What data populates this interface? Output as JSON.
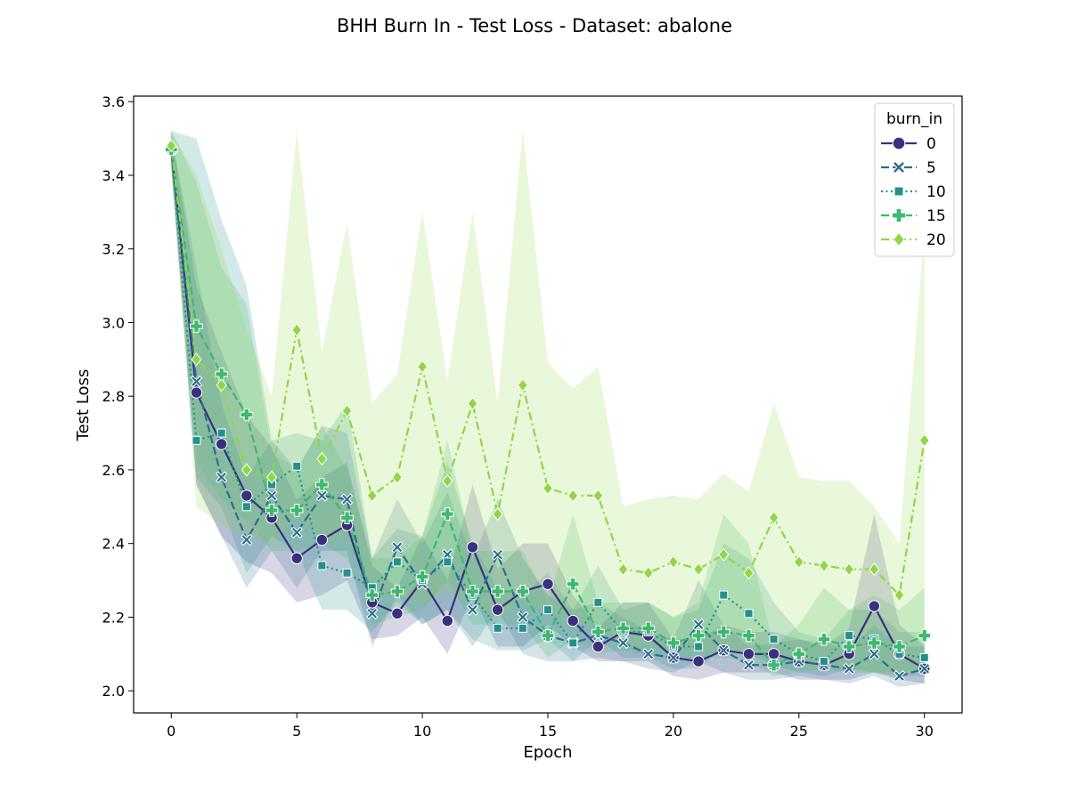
{
  "chart_data": {
    "type": "line",
    "title": "BHH Burn In - Test Loss - Dataset: abalone",
    "xlabel": "Epoch",
    "ylabel": "Test Loss",
    "xlim": [
      -1.5,
      31.5
    ],
    "ylim": [
      1.94,
      3.615
    ],
    "x_ticks": [
      "0",
      "5",
      "10",
      "15",
      "20",
      "25",
      "30"
    ],
    "y_ticks": [
      "2.0",
      "2.2",
      "2.4",
      "2.6",
      "2.8",
      "3.0",
      "3.2",
      "3.4",
      "3.6"
    ],
    "x_tick_values": [
      0,
      5,
      10,
      15,
      20,
      25,
      30
    ],
    "y_tick_values": [
      2.0,
      2.2,
      2.4,
      2.6,
      2.8,
      3.0,
      3.2,
      3.4,
      3.6
    ],
    "grid": false,
    "legend": {
      "title": "burn_in",
      "placement": "top-right"
    },
    "x": [
      0,
      1,
      2,
      3,
      4,
      5,
      6,
      7,
      8,
      9,
      10,
      11,
      12,
      13,
      14,
      15,
      16,
      17,
      18,
      19,
      20,
      21,
      22,
      23,
      24,
      25,
      26,
      27,
      28,
      29,
      30
    ],
    "series": [
      {
        "name": "0",
        "color": "#3b2f80",
        "dash": "solid",
        "marker": "circle",
        "values": [
          3.47,
          2.81,
          2.67,
          2.53,
          2.47,
          2.36,
          2.41,
          2.45,
          2.24,
          2.21,
          2.3,
          2.19,
          2.39,
          2.22,
          2.27,
          2.29,
          2.19,
          2.12,
          2.16,
          2.15,
          2.09,
          2.08,
          2.11,
          2.1,
          2.1,
          2.08,
          2.07,
          2.1,
          2.23,
          2.1,
          2.06
        ],
        "lower": [
          3.43,
          2.56,
          2.42,
          2.35,
          2.32,
          2.24,
          2.26,
          2.3,
          2.14,
          2.15,
          2.2,
          2.1,
          2.26,
          2.12,
          2.12,
          2.18,
          2.12,
          2.08,
          2.08,
          2.08,
          2.04,
          2.03,
          2.05,
          2.05,
          2.05,
          2.03,
          2.03,
          2.03,
          2.05,
          2.03,
          2.02
        ],
        "upper": [
          3.52,
          3.1,
          2.92,
          2.75,
          2.66,
          2.52,
          2.58,
          2.62,
          2.34,
          2.28,
          2.42,
          2.3,
          2.56,
          2.33,
          2.4,
          2.4,
          2.26,
          2.17,
          2.24,
          2.24,
          2.14,
          2.14,
          2.18,
          2.16,
          2.16,
          2.14,
          2.12,
          2.17,
          2.48,
          2.18,
          2.12
        ]
      },
      {
        "name": "5",
        "color": "#2d6d8e",
        "dash": "dashed",
        "marker": "x",
        "values": [
          3.47,
          2.84,
          2.58,
          2.41,
          2.53,
          2.43,
          2.53,
          2.52,
          2.21,
          2.39,
          2.29,
          2.37,
          2.22,
          2.37,
          2.2,
          2.15,
          2.13,
          2.15,
          2.13,
          2.1,
          2.09,
          2.18,
          2.11,
          2.07,
          2.07,
          2.08,
          2.07,
          2.06,
          2.1,
          2.04,
          2.06
        ],
        "lower": [
          3.42,
          2.56,
          2.42,
          2.28,
          2.38,
          2.28,
          2.38,
          2.38,
          2.12,
          2.26,
          2.18,
          2.22,
          2.12,
          2.22,
          2.1,
          2.08,
          2.08,
          2.09,
          2.08,
          2.06,
          2.05,
          2.08,
          2.05,
          2.03,
          2.03,
          2.04,
          2.03,
          2.02,
          2.04,
          2.01,
          2.02
        ],
        "upper": [
          3.51,
          3.15,
          2.78,
          2.58,
          2.68,
          2.6,
          2.72,
          2.7,
          2.36,
          2.52,
          2.4,
          2.54,
          2.36,
          2.52,
          2.36,
          2.26,
          2.22,
          2.24,
          2.2,
          2.16,
          2.14,
          2.3,
          2.18,
          2.12,
          2.13,
          2.14,
          2.13,
          2.11,
          2.18,
          2.12,
          2.12
        ]
      },
      {
        "name": "10",
        "color": "#21918c",
        "dash": "dotted",
        "marker": "square",
        "values": [
          3.47,
          2.68,
          2.7,
          2.5,
          2.56,
          2.61,
          2.34,
          2.32,
          2.28,
          2.35,
          2.3,
          2.35,
          2.26,
          2.17,
          2.17,
          2.22,
          2.13,
          2.24,
          2.16,
          2.16,
          2.12,
          2.12,
          2.26,
          2.21,
          2.14,
          2.1,
          2.08,
          2.15,
          2.14,
          2.1,
          2.09
        ],
        "lower": [
          3.42,
          2.58,
          2.5,
          2.32,
          2.42,
          2.38,
          2.22,
          2.22,
          2.16,
          2.24,
          2.18,
          2.22,
          2.14,
          2.11,
          2.11,
          2.14,
          2.08,
          2.14,
          2.09,
          2.09,
          2.06,
          2.06,
          2.12,
          2.1,
          2.07,
          2.05,
          2.04,
          2.06,
          2.05,
          2.04,
          2.04
        ],
        "upper": [
          3.52,
          3.5,
          3.28,
          3.1,
          2.68,
          2.7,
          2.68,
          2.78,
          2.36,
          2.44,
          2.42,
          2.62,
          2.4,
          2.28,
          2.26,
          2.32,
          2.22,
          2.34,
          2.22,
          2.24,
          2.2,
          2.22,
          2.4,
          2.36,
          2.24,
          2.16,
          2.14,
          2.22,
          2.22,
          2.16,
          2.16
        ]
      },
      {
        "name": "15",
        "color": "#3bb96e",
        "dash": "dashed",
        "marker": "plus",
        "values": [
          3.47,
          2.99,
          2.86,
          2.75,
          2.49,
          2.49,
          2.56,
          2.47,
          2.26,
          2.27,
          2.31,
          2.48,
          2.27,
          2.27,
          2.27,
          2.15,
          2.29,
          2.16,
          2.17,
          2.17,
          2.13,
          2.15,
          2.16,
          2.15,
          2.07,
          2.1,
          2.14,
          2.12,
          2.13,
          2.12,
          2.15
        ],
        "lower": [
          3.42,
          2.62,
          2.52,
          2.46,
          2.38,
          2.38,
          2.4,
          2.36,
          2.18,
          2.2,
          2.22,
          2.3,
          2.18,
          2.18,
          2.18,
          2.09,
          2.14,
          2.1,
          2.11,
          2.1,
          2.08,
          2.09,
          2.09,
          2.08,
          2.04,
          2.05,
          2.06,
          2.05,
          2.05,
          2.05,
          2.06
        ],
        "upper": [
          3.52,
          3.38,
          3.15,
          3.05,
          2.65,
          2.6,
          2.72,
          2.6,
          2.36,
          2.36,
          2.42,
          2.68,
          2.38,
          2.38,
          2.38,
          2.24,
          2.48,
          2.24,
          2.24,
          2.24,
          2.2,
          2.24,
          2.48,
          2.4,
          2.12,
          2.18,
          2.28,
          2.22,
          2.26,
          2.22,
          2.28
        ]
      },
      {
        "name": "20",
        "color": "#8fd744",
        "dash": "dashdot",
        "marker": "diamond",
        "values": [
          3.48,
          2.9,
          2.83,
          2.6,
          2.58,
          2.98,
          2.63,
          2.76,
          2.53,
          2.58,
          2.88,
          2.57,
          2.78,
          2.48,
          2.83,
          2.55,
          2.53,
          2.53,
          2.33,
          2.32,
          2.35,
          2.33,
          2.37,
          2.32,
          2.47,
          2.35,
          2.34,
          2.33,
          2.33,
          2.26,
          2.68
        ],
        "lower": [
          3.42,
          2.5,
          2.45,
          2.42,
          2.4,
          2.48,
          2.4,
          2.42,
          2.26,
          2.26,
          2.24,
          2.27,
          2.24,
          2.2,
          2.24,
          2.22,
          2.18,
          2.18,
          2.12,
          2.12,
          2.12,
          2.1,
          2.11,
          2.1,
          2.1,
          2.06,
          2.06,
          2.06,
          2.05,
          2.04,
          2.06
        ],
        "upper": [
          3.52,
          3.4,
          3.2,
          2.98,
          2.8,
          3.52,
          2.92,
          3.27,
          2.78,
          2.86,
          3.3,
          2.84,
          3.3,
          2.78,
          3.52,
          2.89,
          2.82,
          2.88,
          2.5,
          2.52,
          2.53,
          2.52,
          2.59,
          2.54,
          2.78,
          2.58,
          2.57,
          2.57,
          2.5,
          2.4,
          3.25
        ]
      }
    ]
  }
}
